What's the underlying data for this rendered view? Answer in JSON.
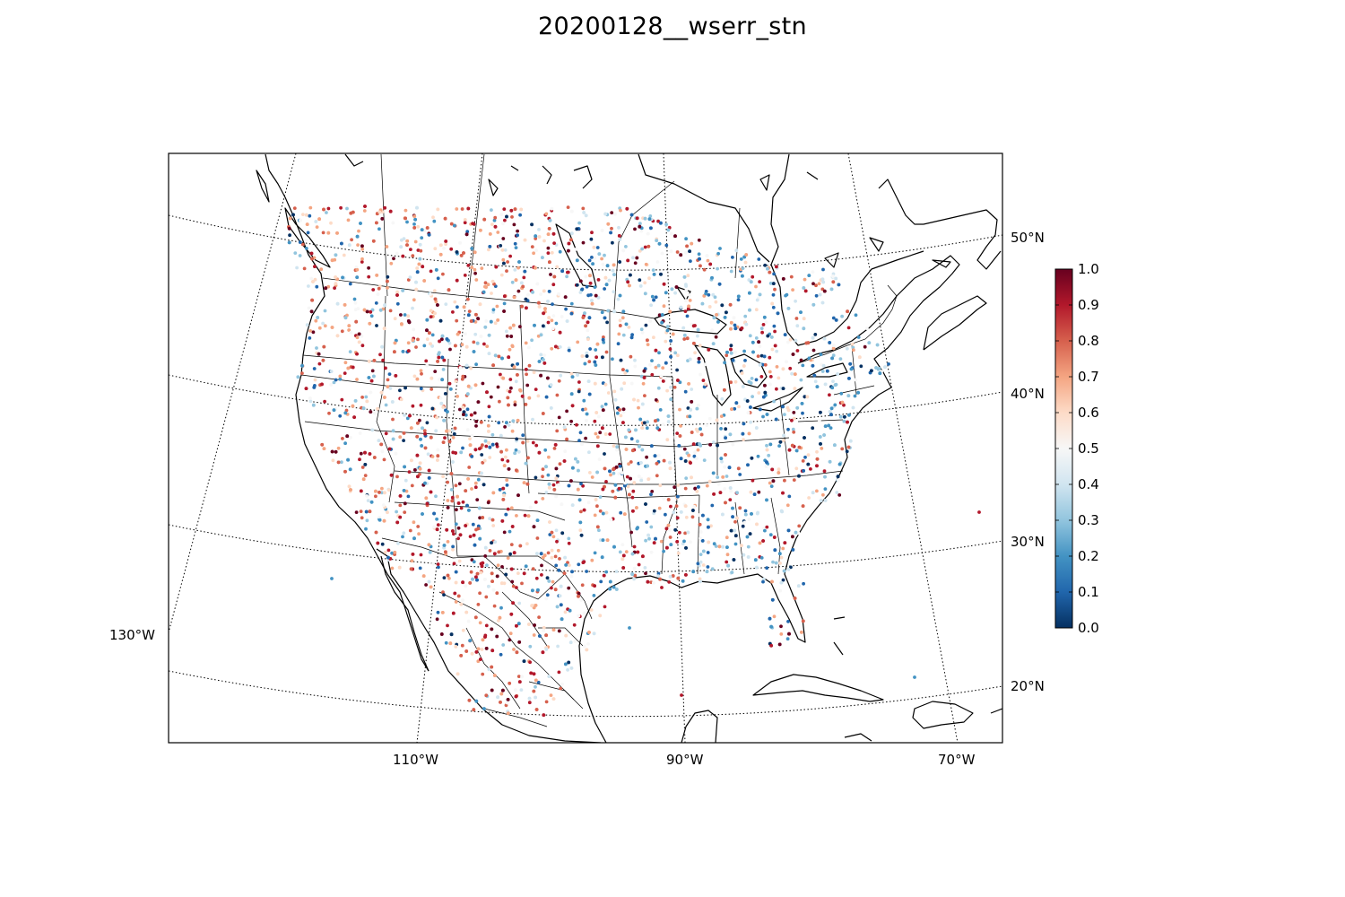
{
  "title": "20200128__wserr_stn",
  "map": {
    "projection": "lambert-conformal",
    "parallels": [
      {
        "lat": 50,
        "label": "50°N"
      },
      {
        "lat": 40,
        "label": "40°N"
      },
      {
        "lat": 30,
        "label": "30°N"
      },
      {
        "lat": 20,
        "label": "20°N"
      }
    ],
    "meridians": [
      {
        "lon": -130,
        "label": "130°W"
      },
      {
        "lon": -110,
        "label": "110°W"
      },
      {
        "lon": -90,
        "label": "90°W"
      },
      {
        "lon": -70,
        "label": "70°W"
      }
    ],
    "land_line_color": "#000000",
    "graticule_style": "dotted"
  },
  "colorbar": {
    "colormap": "RdBu_r",
    "min": 0.0,
    "max": 1.0,
    "ticks": [
      "0.0",
      "0.1",
      "0.2",
      "0.3",
      "0.4",
      "0.5",
      "0.6",
      "0.7",
      "0.8",
      "0.9",
      "1.0"
    ],
    "colors": [
      "#053061",
      "#2166ac",
      "#4393c3",
      "#92c5de",
      "#d1e5f0",
      "#f7f7f7",
      "#fddbc7",
      "#f4a582",
      "#d6604d",
      "#b2182b",
      "#67001f"
    ]
  }
}
